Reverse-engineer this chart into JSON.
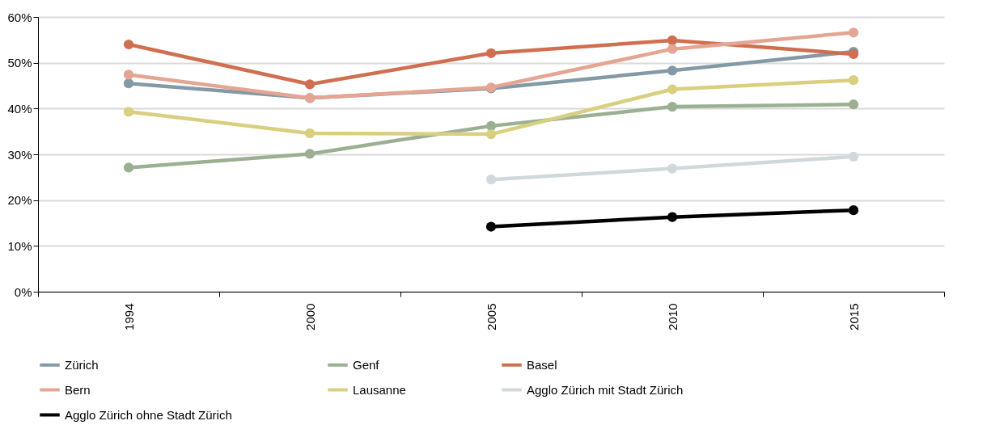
{
  "chart_data": {
    "type": "line",
    "categories": [
      "1994",
      "2000",
      "2005",
      "2010",
      "2015"
    ],
    "series": [
      {
        "name": "Zürich",
        "color": "#8499a6",
        "values": [
          45.5,
          42.3,
          44.4,
          48.3,
          52.4
        ]
      },
      {
        "name": "Genf",
        "color": "#9bb092",
        "values": [
          27.1,
          30.1,
          36.2,
          40.4,
          40.9
        ]
      },
      {
        "name": "Basel",
        "color": "#d06f50",
        "values": [
          54.0,
          45.3,
          52.1,
          54.9,
          51.9
        ]
      },
      {
        "name": "Bern",
        "color": "#e4a592",
        "values": [
          47.4,
          42.3,
          44.6,
          53.0,
          56.6
        ]
      },
      {
        "name": "Lausanne",
        "color": "#d8cf7f",
        "values": [
          39.3,
          34.6,
          34.4,
          44.2,
          46.2
        ]
      },
      {
        "name": "Agglo Zürich mit Stadt Zürich",
        "color": "#d1d8dc",
        "values": [
          null,
          null,
          24.5,
          26.9,
          29.5
        ]
      },
      {
        "name": "Agglo Zürich ohne Stadt Zürich",
        "color": "#000000",
        "values": [
          null,
          null,
          14.2,
          16.3,
          17.8
        ]
      }
    ],
    "ylim": [
      0,
      60
    ],
    "yticks": [
      {
        "value": 0,
        "label": "0%"
      },
      {
        "value": 10,
        "label": "10%"
      },
      {
        "value": 20,
        "label": "20%"
      },
      {
        "value": 30,
        "label": "30%"
      },
      {
        "value": 40,
        "label": "40%"
      },
      {
        "value": 50,
        "label": "50%"
      },
      {
        "value": 60,
        "label": "60%"
      }
    ],
    "grid": "y",
    "legend": "bottom",
    "marker": "circle",
    "line_style": "solid"
  }
}
